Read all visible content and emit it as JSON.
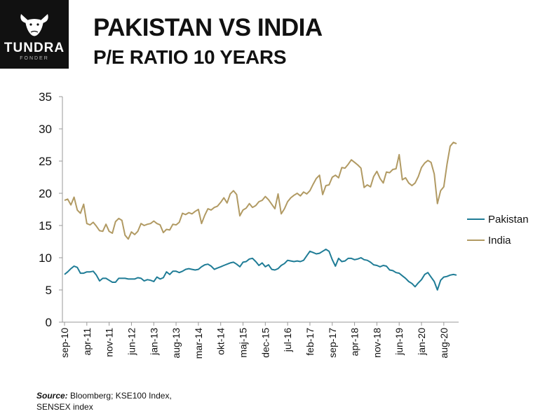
{
  "brand": {
    "name": "TUNDRA",
    "subtitle": "FONDER",
    "logo_icon": "bull-icon"
  },
  "header": {
    "title_line1": "PAKISTAN VS INDIA",
    "title_line2": "P/E RATIO 10 YEARS"
  },
  "source": {
    "label": "Source:",
    "text_line1": "Bloomberg; KSE100 Index,",
    "text_line2": "SENSEX index"
  },
  "chart_data": {
    "type": "line",
    "title": "P/E RATIO 10 YEARS",
    "xlabel": "",
    "ylabel": "",
    "ylim": [
      0,
      35
    ],
    "yticks": [
      0,
      5,
      10,
      15,
      20,
      25,
      30,
      35
    ],
    "grid": false,
    "legend": "right",
    "x_start": "sep-10",
    "x_labels": [
      {
        "label": "sep-10",
        "index": 0
      },
      {
        "label": "apr-11",
        "index": 7
      },
      {
        "label": "nov-11",
        "index": 14
      },
      {
        "label": "jun-12",
        "index": 21
      },
      {
        "label": "jan-13",
        "index": 28
      },
      {
        "label": "aug-13",
        "index": 35
      },
      {
        "label": "mar-14",
        "index": 42
      },
      {
        "label": "okt-14",
        "index": 49
      },
      {
        "label": "maj-15",
        "index": 56
      },
      {
        "label": "dec-15",
        "index": 63
      },
      {
        "label": "jul-16",
        "index": 70
      },
      {
        "label": "feb-17",
        "index": 77
      },
      {
        "label": "sep-17",
        "index": 84
      },
      {
        "label": "apr-18",
        "index": 91
      },
      {
        "label": "nov-18",
        "index": 98
      },
      {
        "label": "jun-19",
        "index": 105
      },
      {
        "label": "jan-20",
        "index": 112
      },
      {
        "label": "aug-20",
        "index": 119
      }
    ],
    "series": [
      {
        "name": "Pakistan",
        "color": "#1f7c96",
        "values": [
          7.4,
          7.8,
          8.3,
          8.7,
          8.5,
          7.6,
          7.6,
          7.8,
          7.8,
          7.9,
          7.3,
          6.4,
          6.8,
          6.8,
          6.5,
          6.2,
          6.2,
          6.8,
          6.8,
          6.8,
          6.7,
          6.7,
          6.7,
          6.9,
          6.8,
          6.4,
          6.6,
          6.5,
          6.3,
          7.0,
          6.7,
          6.9,
          7.8,
          7.4,
          7.9,
          7.9,
          7.7,
          7.9,
          8.2,
          8.3,
          8.2,
          8.1,
          8.2,
          8.6,
          8.9,
          9.0,
          8.7,
          8.2,
          8.4,
          8.6,
          8.8,
          9.0,
          9.2,
          9.3,
          9.0,
          8.6,
          9.3,
          9.4,
          9.8,
          9.9,
          9.4,
          8.8,
          9.2,
          8.6,
          8.9,
          8.2,
          8.1,
          8.3,
          8.8,
          9.1,
          9.6,
          9.5,
          9.4,
          9.5,
          9.4,
          9.6,
          10.3,
          11.0,
          10.8,
          10.6,
          10.7,
          11.0,
          11.3,
          11.0,
          9.7,
          8.7,
          9.9,
          9.4,
          9.5,
          9.9,
          9.9,
          9.7,
          9.8,
          10.0,
          9.7,
          9.6,
          9.3,
          8.9,
          8.8,
          8.6,
          8.8,
          8.7,
          8.1,
          8.0,
          7.7,
          7.6,
          7.2,
          6.8,
          6.3,
          6.0,
          5.5,
          6.1,
          6.6,
          7.4,
          7.7,
          7.0,
          6.3,
          5.0,
          6.5,
          7.0,
          7.1,
          7.3,
          7.4,
          7.3
        ]
      },
      {
        "name": "India",
        "color": "#b19a63",
        "values": [
          18.9,
          19.1,
          18.2,
          19.4,
          17.4,
          16.9,
          18.3,
          15.3,
          15.1,
          15.5,
          14.9,
          14.2,
          14.1,
          15.2,
          14.1,
          13.8,
          15.6,
          16.1,
          15.8,
          13.5,
          12.9,
          14.0,
          13.6,
          14.1,
          15.3,
          15.0,
          15.2,
          15.3,
          15.7,
          15.3,
          15.1,
          13.9,
          14.4,
          14.3,
          15.2,
          15.1,
          15.5,
          16.9,
          16.7,
          17.0,
          16.8,
          17.2,
          17.5,
          15.3,
          16.6,
          17.6,
          17.4,
          17.8,
          18.0,
          18.6,
          19.3,
          18.5,
          19.9,
          20.4,
          19.8,
          16.5,
          17.4,
          17.7,
          18.4,
          17.8,
          18.1,
          18.7,
          18.9,
          19.5,
          19.0,
          18.3,
          17.6,
          19.9,
          16.8,
          17.6,
          18.7,
          19.3,
          19.7,
          20.0,
          19.6,
          20.2,
          19.9,
          20.4,
          21.4,
          22.3,
          22.8,
          19.8,
          21.2,
          21.3,
          22.5,
          22.8,
          22.4,
          24.0,
          23.9,
          24.5,
          25.2,
          24.8,
          24.4,
          23.9,
          20.9,
          21.3,
          21.0,
          22.6,
          23.4,
          22.3,
          21.6,
          23.3,
          23.2,
          23.7,
          23.8,
          26.0,
          22.1,
          22.4,
          21.6,
          21.2,
          21.6,
          22.6,
          24.0,
          24.7,
          25.1,
          24.8,
          23.0,
          18.4,
          20.4,
          21.0,
          24.5,
          27.3,
          27.9,
          27.7
        ]
      }
    ]
  }
}
